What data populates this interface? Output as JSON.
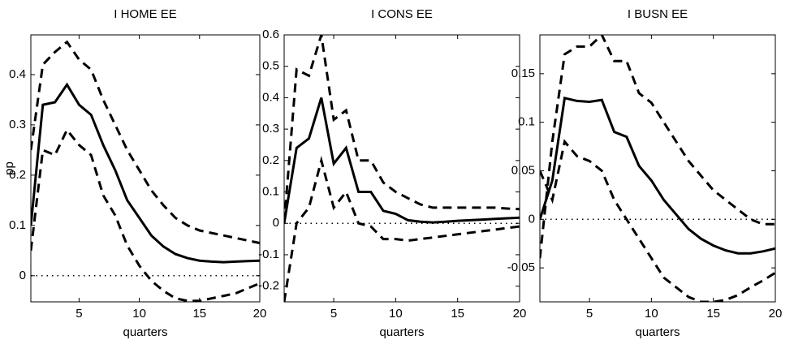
{
  "chart_data": [
    {
      "type": "line",
      "title": "I HOME EE",
      "ylabel": "pp",
      "xlabel": "quarters",
      "x": [
        1,
        2,
        3,
        4,
        5,
        6,
        7,
        8,
        9,
        10,
        11,
        12,
        13,
        14,
        15,
        16,
        17,
        18,
        19,
        20
      ],
      "xlim": [
        1,
        20
      ],
      "xticks": [
        5,
        10,
        15,
        20
      ],
      "ylim": [
        -0.052,
        0.479
      ],
      "yticks": [
        0,
        0.1,
        0.2,
        0.3,
        0.4
      ],
      "zero_line": true,
      "series": [
        {
          "color": "#000000",
          "line_style": "solid",
          "values": [
            0.1,
            0.34,
            0.345,
            0.38,
            0.34,
            0.32,
            0.26,
            0.21,
            0.15,
            0.115,
            0.08,
            0.058,
            0.043,
            0.035,
            0.03,
            0.028,
            0.027,
            0.028,
            0.029,
            0.03
          ]
        },
        {
          "color": "#000000",
          "line_style": "dashed",
          "values": [
            0.25,
            0.42,
            0.445,
            0.465,
            0.43,
            0.41,
            0.35,
            0.3,
            0.25,
            0.21,
            0.17,
            0.14,
            0.115,
            0.1,
            0.09,
            0.085,
            0.08,
            0.075,
            0.07,
            0.065
          ]
        },
        {
          "color": "#000000",
          "line_style": "dashed",
          "values": [
            0.05,
            0.25,
            0.24,
            0.29,
            0.26,
            0.24,
            0.16,
            0.12,
            0.06,
            0.02,
            -0.01,
            -0.03,
            -0.045,
            -0.05,
            -0.05,
            -0.045,
            -0.04,
            -0.035,
            -0.025,
            -0.015
          ]
        }
      ]
    },
    {
      "type": "line",
      "title": "I CONS EE",
      "xlabel": "quarters",
      "x": [
        1,
        2,
        3,
        4,
        5,
        6,
        7,
        8,
        9,
        10,
        11,
        12,
        13,
        14,
        15,
        16,
        17,
        18,
        19,
        20
      ],
      "xlim": [
        1,
        20
      ],
      "xticks": [
        5,
        10,
        15,
        20
      ],
      "ylim": [
        -0.25,
        0.6
      ],
      "yticks": [
        -0.2,
        -0.1,
        0,
        0.1,
        0.2,
        0.3,
        0.4,
        0.5,
        0.6
      ],
      "zero_line": true,
      "series": [
        {
          "color": "#000000",
          "line_style": "solid",
          "values": [
            0,
            0.24,
            0.27,
            0.4,
            0.19,
            0.24,
            0.1,
            0.1,
            0.04,
            0.03,
            0.01,
            0.005,
            0.003,
            0.005,
            0.008,
            0.01,
            0.012,
            0.014,
            0.016,
            0.018
          ]
        },
        {
          "color": "#000000",
          "line_style": "dashed",
          "values": [
            0,
            0.49,
            0.47,
            0.6,
            0.33,
            0.36,
            0.2,
            0.2,
            0.13,
            0.1,
            0.08,
            0.06,
            0.05,
            0.05,
            0.05,
            0.05,
            0.05,
            0.05,
            0.047,
            0.045
          ]
        },
        {
          "color": "#000000",
          "line_style": "dashed",
          "values": [
            -0.25,
            0,
            0.05,
            0.2,
            0.05,
            0.1,
            0,
            -0.01,
            -0.05,
            -0.05,
            -0.055,
            -0.05,
            -0.045,
            -0.04,
            -0.035,
            -0.03,
            -0.025,
            -0.02,
            -0.015,
            -0.01
          ]
        }
      ]
    },
    {
      "type": "line",
      "title": "I BUSN EE",
      "xlabel": "quarters",
      "x": [
        1,
        2,
        3,
        4,
        5,
        6,
        7,
        8,
        9,
        10,
        11,
        12,
        13,
        14,
        15,
        16,
        17,
        18,
        19,
        20
      ],
      "xlim": [
        1,
        20
      ],
      "xticks": [
        5,
        10,
        15,
        20
      ],
      "ylim": [
        -0.085,
        0.19
      ],
      "yticks": [
        -0.05,
        0,
        0.05,
        0.1,
        0.15
      ],
      "zero_line": true,
      "series": [
        {
          "color": "#000000",
          "line_style": "solid",
          "values": [
            0,
            0.04,
            0.125,
            0.122,
            0.121,
            0.123,
            0.09,
            0.085,
            0.055,
            0.04,
            0.02,
            0.005,
            -0.01,
            -0.02,
            -0.027,
            -0.032,
            -0.035,
            -0.035,
            -0.033,
            -0.03
          ]
        },
        {
          "color": "#000000",
          "line_style": "dashed",
          "values": [
            -0.04,
            0.08,
            0.17,
            0.178,
            0.178,
            0.19,
            0.163,
            0.163,
            0.13,
            0.12,
            0.1,
            0.08,
            0.06,
            0.045,
            0.03,
            0.02,
            0.01,
            0,
            -0.005,
            -0.005
          ]
        },
        {
          "color": "#000000",
          "line_style": "dashed",
          "values": [
            0.05,
            0.02,
            0.08,
            0.065,
            0.06,
            0.05,
            0.02,
            0,
            -0.02,
            -0.04,
            -0.06,
            -0.07,
            -0.08,
            -0.085,
            -0.085,
            -0.083,
            -0.078,
            -0.07,
            -0.063,
            -0.055
          ]
        }
      ]
    }
  ]
}
